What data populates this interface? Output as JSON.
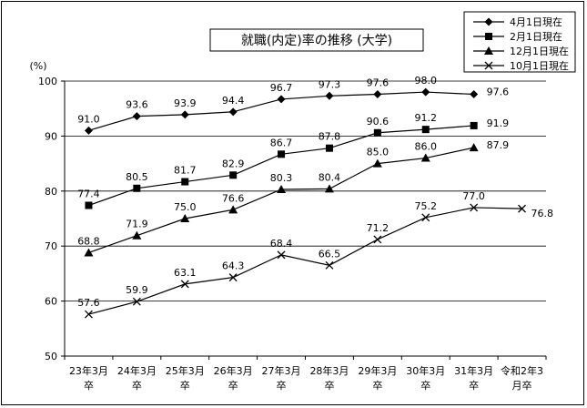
{
  "chart_data": {
    "type": "line",
    "title": "就職(内定)率の推移 (大学)",
    "ylabel": "(%)",
    "ylim": [
      50,
      100
    ],
    "yticks": [
      50,
      60,
      70,
      80,
      90,
      100
    ],
    "categories": [
      [
        "23年3月",
        "卒"
      ],
      [
        "24年3月",
        "卒"
      ],
      [
        "25年3月",
        "卒"
      ],
      [
        "26年3月",
        "卒"
      ],
      [
        "27年3月",
        "卒"
      ],
      [
        "28年3月",
        "卒"
      ],
      [
        "29年3月",
        "卒"
      ],
      [
        "30年3月",
        "卒"
      ],
      [
        "31年3月",
        "卒"
      ],
      [
        "令和2年3",
        "月卒"
      ]
    ],
    "legend_position": "top-right",
    "series": [
      {
        "name": "4月1日現在",
        "marker": "diamond",
        "values": [
          91.0,
          93.6,
          93.9,
          94.4,
          96.7,
          97.3,
          97.6,
          98.0,
          97.6,
          null
        ],
        "labels": [
          "91.0",
          "93.6",
          "93.9",
          "94.4",
          "96.7",
          "97.3",
          "97.6",
          "98.0",
          "97.6",
          ""
        ]
      },
      {
        "name": "2月1日現在",
        "marker": "square",
        "values": [
          77.4,
          80.5,
          81.7,
          82.9,
          86.7,
          87.8,
          90.6,
          91.2,
          91.9,
          null
        ],
        "labels": [
          "77.4",
          "80.5",
          "81.7",
          "82.9",
          "86.7",
          "87.8",
          "90.6",
          "91.2",
          "91.9",
          ""
        ]
      },
      {
        "name": "12月1日現在",
        "marker": "triangle",
        "values": [
          68.8,
          71.9,
          75.0,
          76.6,
          80.3,
          80.4,
          85.0,
          86.0,
          87.9,
          null
        ],
        "labels": [
          "68.8",
          "71.9",
          "75.0",
          "76.6",
          "80.3",
          "80.4",
          "85.0",
          "86.0",
          "87.9",
          ""
        ]
      },
      {
        "name": "10月1日現在",
        "marker": "cross",
        "values": [
          57.6,
          59.9,
          63.1,
          64.3,
          68.4,
          66.5,
          71.2,
          75.2,
          77.0,
          76.8
        ],
        "labels": [
          "57.6",
          "59.9",
          "63.1",
          "64.3",
          "68.4",
          "66.5",
          "71.2",
          "75.2",
          "77.0",
          "76.8"
        ]
      }
    ]
  }
}
